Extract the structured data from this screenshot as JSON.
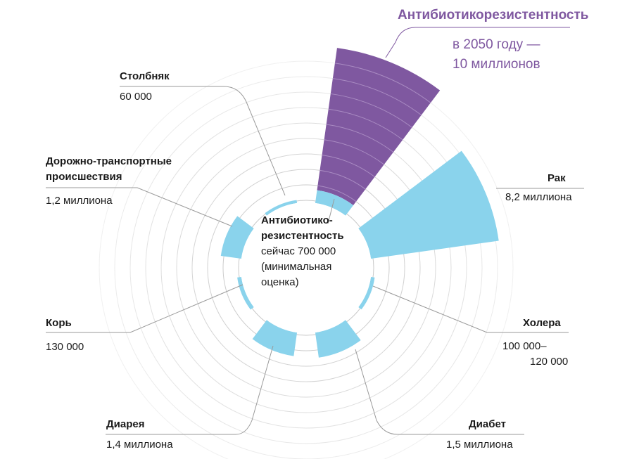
{
  "colors": {
    "now": "#8ad3ec",
    "future": "#7f58a0",
    "grid": "#c8c8c8",
    "leader": "#9a9a9a"
  },
  "chart_data": {
    "type": "polar-area",
    "unit": "deaths per year",
    "grid_step": 1000000,
    "sectors": [
      {
        "name": "Антибиотикорезистентность",
        "value_now": 700000,
        "value_2050": 10000000
      },
      {
        "name": "Рак",
        "value": 8200000
      },
      {
        "name": "Холера",
        "value": 110000
      },
      {
        "name": "Диабет",
        "value": 1500000
      },
      {
        "name": "Диарея",
        "value": 1400000
      },
      {
        "name": "Корь",
        "value": 130000
      },
      {
        "name": "Дорожно-транспортные происшествия",
        "value": 1200000
      },
      {
        "name": "Столбняк",
        "value": 60000
      }
    ]
  },
  "labels": {
    "amr_2050": {
      "title": "Антибиотикорезистентность",
      "line1": "в 2050 году —",
      "line2": "10 миллионов"
    },
    "amr_now": {
      "title1": "Антибиотико-",
      "title2": "резистентность",
      "line1": "сейчас 700 000",
      "line2": "(минимальная",
      "line3": "оценка)"
    },
    "cancer": {
      "title": "Рак",
      "value": "8,2 миллиона"
    },
    "cholera": {
      "title": "Холера",
      "value1": "100 000–",
      "value2": "120 000"
    },
    "diabetes": {
      "title": "Диабет",
      "value": "1,5 миллиона"
    },
    "diarrhea": {
      "title": "Диарея",
      "value": "1,4 миллиона"
    },
    "measles": {
      "title": "Корь",
      "value": "130 000"
    },
    "roads": {
      "title1": "Дорожно-транспортные",
      "title2": "происшествия",
      "value": "1,2 миллиона"
    },
    "tetanus": {
      "title": "Столбняк",
      "value": "60 000"
    }
  }
}
